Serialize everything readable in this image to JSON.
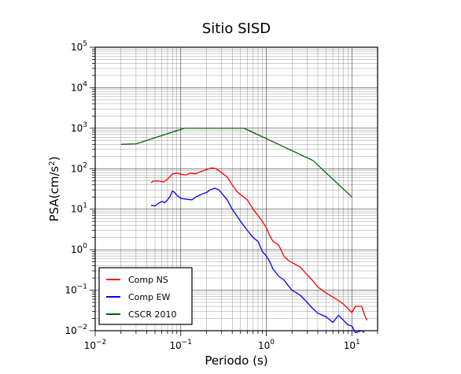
{
  "chart_data": {
    "type": "line",
    "title": "Sitio SISD",
    "xlabel": "Periodo (s)",
    "ylabel_parts": {
      "base": "PSA(cm/s",
      "sup": "2",
      "close": ")"
    },
    "x_scale": "log",
    "y_scale": "log",
    "xlim": [
      0.01,
      20
    ],
    "ylim": [
      0.01,
      100000
    ],
    "grid": true,
    "legend_position": "bottom-left",
    "x_ticks": [
      {
        "value": 0.01,
        "base": "10",
        "exp": "−2"
      },
      {
        "value": 0.1,
        "base": "10",
        "exp": "−1"
      },
      {
        "value": 1,
        "base": "10",
        "exp": "0"
      },
      {
        "value": 10,
        "base": "10",
        "exp": "1"
      }
    ],
    "y_ticks": [
      {
        "value": 0.01,
        "base": "10",
        "exp": "−2"
      },
      {
        "value": 0.1,
        "base": "10",
        "exp": "−1"
      },
      {
        "value": 1,
        "base": "10",
        "exp": "0"
      },
      {
        "value": 10,
        "base": "10",
        "exp": "1"
      },
      {
        "value": 100,
        "base": "10",
        "exp": "2"
      },
      {
        "value": 1000,
        "base": "10",
        "exp": "3"
      },
      {
        "value": 10000,
        "base": "10",
        "exp": "4"
      },
      {
        "value": 100000,
        "base": "10",
        "exp": "5"
      }
    ],
    "series": [
      {
        "name": "Comp NS",
        "color": "#ff0000",
        "points": [
          [
            0.045,
            45
          ],
          [
            0.048,
            50
          ],
          [
            0.055,
            50
          ],
          [
            0.063,
            47
          ],
          [
            0.07,
            55
          ],
          [
            0.08,
            74
          ],
          [
            0.09,
            78
          ],
          [
            0.1,
            73
          ],
          [
            0.115,
            70
          ],
          [
            0.13,
            78
          ],
          [
            0.15,
            75
          ],
          [
            0.17,
            84
          ],
          [
            0.2,
            95
          ],
          [
            0.23,
            105
          ],
          [
            0.26,
            100
          ],
          [
            0.3,
            80
          ],
          [
            0.35,
            62
          ],
          [
            0.4,
            40
          ],
          [
            0.45,
            28
          ],
          [
            0.5,
            23
          ],
          [
            0.6,
            17
          ],
          [
            0.7,
            10
          ],
          [
            0.8,
            7
          ],
          [
            0.9,
            5
          ],
          [
            1.0,
            3.5
          ],
          [
            1.1,
            2.2
          ],
          [
            1.2,
            1.6
          ],
          [
            1.4,
            1.3
          ],
          [
            1.6,
            0.7
          ],
          [
            1.8,
            0.55
          ],
          [
            2.0,
            0.48
          ],
          [
            2.5,
            0.37
          ],
          [
            3.0,
            0.24
          ],
          [
            3.5,
            0.17
          ],
          [
            4.0,
            0.12
          ],
          [
            5.0,
            0.085
          ],
          [
            6.0,
            0.068
          ],
          [
            7.0,
            0.055
          ],
          [
            8.0,
            0.045
          ],
          [
            9.0,
            0.035
          ],
          [
            10.0,
            0.028
          ],
          [
            11.0,
            0.04
          ],
          [
            13.0,
            0.04
          ],
          [
            14.0,
            0.025
          ],
          [
            15.0,
            0.018
          ]
        ]
      },
      {
        "name": "Comp EW",
        "color": "#0000ff",
        "points": [
          [
            0.045,
            12.5
          ],
          [
            0.05,
            12
          ],
          [
            0.055,
            14
          ],
          [
            0.06,
            15.5
          ],
          [
            0.065,
            14.5
          ],
          [
            0.07,
            17
          ],
          [
            0.075,
            21
          ],
          [
            0.08,
            28
          ],
          [
            0.085,
            26
          ],
          [
            0.09,
            22
          ],
          [
            0.1,
            18.5
          ],
          [
            0.12,
            17.5
          ],
          [
            0.135,
            17
          ],
          [
            0.15,
            20
          ],
          [
            0.18,
            24
          ],
          [
            0.2,
            26
          ],
          [
            0.22,
            30
          ],
          [
            0.25,
            33
          ],
          [
            0.28,
            30
          ],
          [
            0.3,
            25
          ],
          [
            0.35,
            17
          ],
          [
            0.4,
            10
          ],
          [
            0.45,
            7
          ],
          [
            0.5,
            5
          ],
          [
            0.6,
            3
          ],
          [
            0.7,
            2
          ],
          [
            0.8,
            1.6
          ],
          [
            0.9,
            0.9
          ],
          [
            1.0,
            0.7
          ],
          [
            1.1,
            0.5
          ],
          [
            1.2,
            0.33
          ],
          [
            1.4,
            0.22
          ],
          [
            1.6,
            0.18
          ],
          [
            1.8,
            0.13
          ],
          [
            2.0,
            0.1
          ],
          [
            2.5,
            0.075
          ],
          [
            3.0,
            0.05
          ],
          [
            3.5,
            0.035
          ],
          [
            4.0,
            0.027
          ],
          [
            5.0,
            0.022
          ],
          [
            6.0,
            0.016
          ],
          [
            7.0,
            0.024
          ],
          [
            8.0,
            0.018
          ],
          [
            9.0,
            0.014
          ],
          [
            10.0,
            0.013
          ],
          [
            11.0,
            0.009
          ],
          [
            13.0,
            0.01
          ],
          [
            14.0,
            0.009
          ]
        ]
      },
      {
        "name": "CSCR 2010",
        "color": "#006400",
        "points": [
          [
            0.02,
            400
          ],
          [
            0.03,
            410
          ],
          [
            0.11,
            1000
          ],
          [
            0.55,
            1000
          ],
          [
            3.5,
            160
          ],
          [
            10.0,
            20
          ]
        ]
      }
    ]
  }
}
